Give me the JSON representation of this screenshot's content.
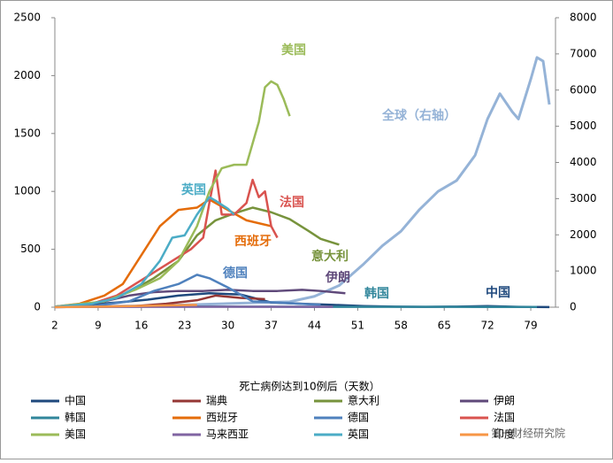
{
  "chart_data": {
    "type": "line",
    "x_axis_label": "死亡病例达到10例后（天数）",
    "xlim": [
      2,
      83
    ],
    "xticks": [
      2,
      9,
      16,
      23,
      30,
      37,
      44,
      51,
      58,
      65,
      72,
      79
    ],
    "ylim": [
      0,
      2500
    ],
    "yticks": [
      0,
      500,
      1000,
      1500,
      2000,
      2500
    ],
    "y2lim": [
      0,
      8000
    ],
    "y2ticks": [
      0,
      1000,
      2000,
      3000,
      4000,
      5000,
      6000,
      7000,
      8000
    ],
    "series": [
      {
        "name": "中国",
        "color": "#1f497d",
        "x": [
          2,
          7,
          12,
          17,
          22,
          27,
          32,
          37,
          42,
          47,
          52,
          57,
          62,
          67,
          72,
          77,
          82
        ],
        "values": [
          5,
          20,
          40,
          65,
          100,
          120,
          110,
          40,
          30,
          20,
          10,
          5,
          3,
          5,
          10,
          3,
          1
        ]
      },
      {
        "name": "瑞典",
        "color": "#953735",
        "x": [
          2,
          10,
          15,
          20,
          25,
          28,
          32,
          36
        ],
        "values": [
          1,
          5,
          10,
          30,
          60,
          100,
          80,
          70
        ]
      },
      {
        "name": "意大利",
        "color": "#77933c",
        "x": [
          2,
          6,
          10,
          14,
          18,
          22,
          25,
          28,
          31,
          34,
          37,
          40,
          43,
          45,
          48
        ],
        "values": [
          5,
          20,
          50,
          130,
          250,
          400,
          620,
          750,
          810,
          860,
          820,
          760,
          660,
          590,
          540
        ]
      },
      {
        "name": "伊朗",
        "color": "#5f497a",
        "x": [
          2,
          6,
          10,
          14,
          18,
          22,
          26,
          30,
          34,
          38,
          42,
          45,
          49
        ],
        "values": [
          5,
          15,
          50,
          100,
          130,
          140,
          140,
          150,
          140,
          140,
          150,
          140,
          120
        ]
      },
      {
        "name": "韩国",
        "color": "#31869b",
        "x": [
          2,
          10,
          20,
          30,
          40,
          50,
          60,
          70,
          80
        ],
        "values": [
          2,
          5,
          6,
          5,
          4,
          3,
          3,
          2,
          2
        ]
      },
      {
        "name": "西班牙",
        "color": "#e46c0a",
        "x": [
          2,
          6,
          10,
          13,
          16,
          19,
          22,
          25,
          27,
          30,
          33,
          37
        ],
        "values": [
          5,
          30,
          100,
          200,
          450,
          700,
          840,
          860,
          930,
          840,
          750,
          700
        ]
      },
      {
        "name": "德国",
        "color": "#4f81bd",
        "x": [
          2,
          8,
          14,
          18,
          22,
          25,
          27,
          30,
          34,
          38,
          45
        ],
        "values": [
          2,
          10,
          50,
          140,
          200,
          280,
          250,
          170,
          50,
          40,
          20
        ]
      },
      {
        "name": "法国",
        "color": "#d9534f",
        "x": [
          2,
          8,
          12,
          15,
          18,
          21,
          24,
          26,
          27,
          28,
          29,
          31,
          33,
          34,
          35,
          36,
          37,
          38
        ],
        "values": [
          5,
          30,
          100,
          200,
          300,
          400,
          500,
          600,
          900,
          1180,
          800,
          800,
          900,
          1100,
          950,
          1000,
          700,
          600
        ]
      },
      {
        "name": "美国",
        "color": "#9bbb59",
        "x": [
          2,
          10,
          15,
          19,
          22,
          25,
          27,
          29,
          31,
          33,
          35,
          36,
          37,
          38,
          39,
          40
        ],
        "values": [
          5,
          50,
          150,
          250,
          400,
          700,
          1000,
          1200,
          1230,
          1230,
          1600,
          1900,
          1950,
          1920,
          1800,
          1650
        ]
      },
      {
        "name": "马来西亚",
        "color": "#8064a2",
        "x": [
          2,
          15,
          30,
          47
        ],
        "values": [
          1,
          3,
          4,
          3
        ]
      },
      {
        "name": "英国",
        "color": "#4bacc6",
        "x": [
          2,
          8,
          12,
          16,
          19,
          21,
          23,
          25,
          27,
          28,
          30,
          31
        ],
        "values": [
          5,
          30,
          80,
          200,
          400,
          600,
          620,
          800,
          950,
          920,
          850,
          800
        ]
      },
      {
        "name": "印度",
        "color": "#f79646",
        "x": [
          2,
          10,
          20,
          25
        ],
        "values": [
          1,
          5,
          15,
          20
        ]
      }
    ],
    "y2_series": {
      "name": "全球（右轴）",
      "color": "#95b3d7",
      "x": [
        2,
        10,
        20,
        30,
        40,
        44,
        48,
        52,
        55,
        58,
        61,
        64,
        67,
        70,
        72,
        74,
        76,
        77,
        79,
        80,
        81,
        82
      ],
      "values": [
        10,
        20,
        50,
        100,
        150,
        300,
        600,
        1200,
        1700,
        2100,
        2700,
        3200,
        3500,
        4200,
        5200,
        5900,
        5400,
        5200,
        6300,
        6900,
        6800,
        5600
      ]
    },
    "annotations": [
      "美国",
      "英国",
      "法国",
      "西班牙",
      "意大利",
      "德国",
      "伊朗",
      "韩国",
      "中国"
    ],
    "watermark": "第一财经研究院"
  }
}
